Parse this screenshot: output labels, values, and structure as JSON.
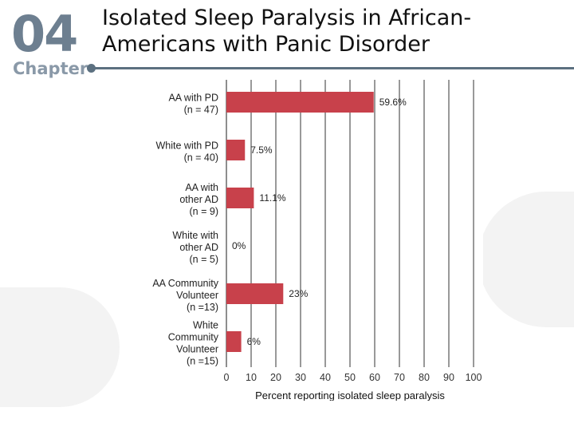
{
  "header": {
    "chapter_number": "04",
    "chapter_label": "Chapter",
    "title": "Isolated Sleep Paralysis in African-Americans with Panic Disorder"
  },
  "colors": {
    "bar": "#c8414b",
    "axis": "#444444",
    "gridline": "#333333",
    "title_rule": "#5c7080",
    "chapter_text": "#6d7f90"
  },
  "chart_data": {
    "type": "bar",
    "orientation": "horizontal",
    "categories": [
      [
        "AA with PD",
        "(n = 47)"
      ],
      [
        "White with PD",
        "(n = 40)"
      ],
      [
        "AA with",
        "other AD",
        "(n = 9)"
      ],
      [
        "White with",
        "other AD",
        "(n = 5)"
      ],
      [
        "AA Community",
        "Volunteer",
        "(n =13)"
      ],
      [
        "White",
        "Community",
        "Volunteer",
        "(n =15)"
      ]
    ],
    "values": [
      59.6,
      7.5,
      11.1,
      0,
      23,
      6
    ],
    "data_labels": [
      "59.6%",
      "7.5%",
      "11.1%",
      "0%",
      "23%",
      "6%"
    ],
    "xlim": [
      0,
      100
    ],
    "xticks": [
      0,
      10,
      20,
      30,
      40,
      50,
      60,
      70,
      80,
      90,
      100
    ],
    "xlabel": "Percent reporting isolated sleep paralysis",
    "ylabel": "",
    "grid": "vertical lines at each tick"
  }
}
